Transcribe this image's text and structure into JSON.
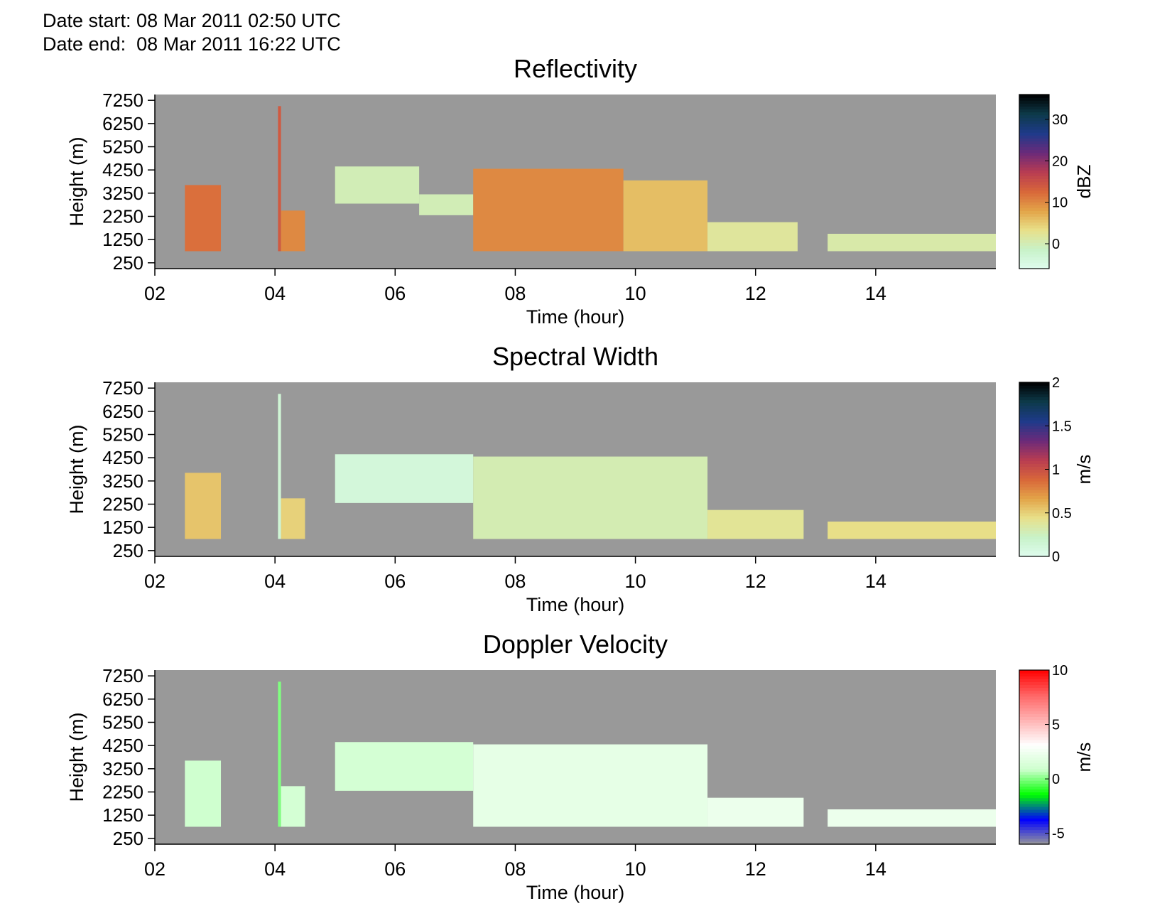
{
  "header": {
    "date_start": "Date start: 08 Mar 2011 02:50 UTC",
    "date_end": "Date end:  08 Mar 2011 16:22 UTC"
  },
  "colors": {
    "no_data": "#999999",
    "reflectivity_stops": [
      "#dffcef",
      "#c8f2c8",
      "#e8e08a",
      "#e3a448",
      "#d8663a",
      "#b83c52",
      "#6a2a7a",
      "#1e3a8a",
      "#0d3a4a",
      "#000000"
    ],
    "width_stops": [
      "#dffcef",
      "#c8f2c8",
      "#e8e08a",
      "#e3a448",
      "#d8663a",
      "#b83c52",
      "#6a2a7a",
      "#1e3a8a",
      "#0d3a4a",
      "#000000"
    ],
    "velocity_stops": [
      "#999999",
      "#0000ff",
      "#00ff00",
      "#ccffcc",
      "#ffffff",
      "#ffb3b3",
      "#ff6666",
      "#ff0000"
    ]
  },
  "chart_data": [
    {
      "type": "heatmap",
      "title": "Reflectivity",
      "xlabel": "Time (hour)",
      "ylabel": "Height (m)",
      "xlim": [
        2,
        16
      ],
      "ylim": [
        0,
        7500
      ],
      "xticks": [
        "02",
        "04",
        "06",
        "08",
        "10",
        "12",
        "14"
      ],
      "yticks": [
        "250",
        "1250",
        "2250",
        "3250",
        "4250",
        "5250",
        "6250",
        "7250"
      ],
      "colorbar": {
        "label": "dBZ",
        "range": [
          -6,
          36
        ],
        "ticks": [
          "0",
          "10",
          "20",
          "30"
        ],
        "tick_values": [
          0,
          10,
          20,
          30
        ],
        "colors": "reflectivity_stops"
      },
      "cells": [
        {
          "t0": 2.5,
          "t1": 3.1,
          "h0": 750,
          "h1": 3600,
          "value": 12
        },
        {
          "t0": 4.05,
          "t1": 4.1,
          "h0": 750,
          "h1": 7000,
          "value": 14
        },
        {
          "t0": 4.1,
          "t1": 4.5,
          "h0": 750,
          "h1": 2500,
          "value": 10
        },
        {
          "t0": 5.0,
          "t1": 6.4,
          "h0": 2800,
          "h1": 4400,
          "value": 0
        },
        {
          "t0": 6.4,
          "t1": 7.3,
          "h0": 2300,
          "h1": 3200,
          "value": 0
        },
        {
          "t0": 7.3,
          "t1": 9.8,
          "h0": 750,
          "h1": 4300,
          "value": 10
        },
        {
          "t0": 9.8,
          "t1": 11.2,
          "h0": 750,
          "h1": 3800,
          "value": 6
        },
        {
          "t0": 11.2,
          "t1": 12.7,
          "h0": 750,
          "h1": 2000,
          "value": 2
        },
        {
          "t0": 13.2,
          "t1": 16.0,
          "h0": 750,
          "h1": 1500,
          "value": 1
        }
      ]
    },
    {
      "type": "heatmap",
      "title": "Spectral Width",
      "xlabel": "Time (hour)",
      "ylabel": "Height (m)",
      "xlim": [
        2,
        16
      ],
      "ylim": [
        0,
        7500
      ],
      "xticks": [
        "02",
        "04",
        "06",
        "08",
        "10",
        "12",
        "14"
      ],
      "yticks": [
        "250",
        "1250",
        "2250",
        "3250",
        "4250",
        "5250",
        "6250",
        "7250"
      ],
      "colorbar": {
        "label": "m/s",
        "range": [
          0,
          2
        ],
        "ticks": [
          "0",
          "0.5",
          "1",
          "1.5",
          "2"
        ],
        "tick_values": [
          0,
          0.5,
          1,
          1.5,
          2
        ],
        "colors": "width_stops"
      },
      "cells": [
        {
          "t0": 2.5,
          "t1": 3.1,
          "h0": 750,
          "h1": 3600,
          "value": 0.55
        },
        {
          "t0": 4.05,
          "t1": 4.1,
          "h0": 750,
          "h1": 7000,
          "value": 0.15
        },
        {
          "t0": 4.1,
          "t1": 4.5,
          "h0": 750,
          "h1": 2500,
          "value": 0.5
        },
        {
          "t0": 5.0,
          "t1": 7.3,
          "h0": 2300,
          "h1": 4400,
          "value": 0.12
        },
        {
          "t0": 7.3,
          "t1": 11.2,
          "h0": 750,
          "h1": 4300,
          "value": 0.3
        },
        {
          "t0": 11.2,
          "t1": 12.8,
          "h0": 750,
          "h1": 2000,
          "value": 0.4
        },
        {
          "t0": 13.2,
          "t1": 16.0,
          "h0": 750,
          "h1": 1500,
          "value": 0.45
        }
      ]
    },
    {
      "type": "heatmap",
      "title": "Doppler Velocity",
      "xlabel": "Time (hour)",
      "ylabel": "Height (m)",
      "xlim": [
        2,
        16
      ],
      "ylim": [
        0,
        7500
      ],
      "xticks": [
        "02",
        "04",
        "06",
        "08",
        "10",
        "12",
        "14"
      ],
      "yticks": [
        "250",
        "1250",
        "2250",
        "3250",
        "4250",
        "5250",
        "6250",
        "7250"
      ],
      "colorbar": {
        "label": "m/s",
        "range": [
          -6,
          10
        ],
        "ticks": [
          "-5",
          "0",
          "5",
          "10"
        ],
        "tick_values": [
          -5,
          0,
          5,
          10
        ],
        "colors": "velocity_stops"
      },
      "cells": [
        {
          "t0": 2.5,
          "t1": 3.1,
          "h0": 750,
          "h1": 3600,
          "value": 1.0
        },
        {
          "t0": 4.05,
          "t1": 4.1,
          "h0": 750,
          "h1": 7000,
          "value": 0.0
        },
        {
          "t0": 4.1,
          "t1": 4.5,
          "h0": 750,
          "h1": 2500,
          "value": 1.2
        },
        {
          "t0": 5.0,
          "t1": 7.3,
          "h0": 2300,
          "h1": 4400,
          "value": 1.2
        },
        {
          "t0": 7.3,
          "t1": 11.2,
          "h0": 750,
          "h1": 4300,
          "value": 2.0
        },
        {
          "t0": 11.2,
          "t1": 12.8,
          "h0": 750,
          "h1": 2000,
          "value": 2.3
        },
        {
          "t0": 13.2,
          "t1": 16.0,
          "h0": 750,
          "h1": 1500,
          "value": 2.3
        }
      ]
    }
  ]
}
